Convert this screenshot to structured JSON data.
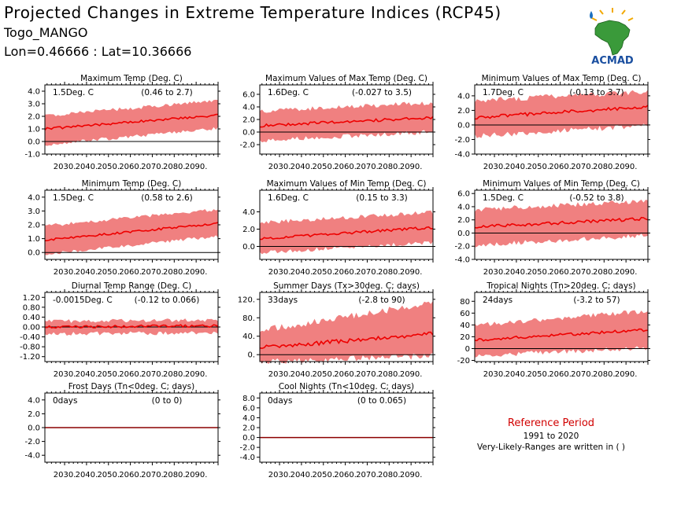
{
  "header": {
    "title": "Projected Changes in Extreme Temperature Indices (RCP45)",
    "location": "Togo_MANGO",
    "coords": "Lon=0.46666 : Lat=10.36666"
  },
  "logo": {
    "text": "ACMAD",
    "icon": "africa-map-logo"
  },
  "colors": {
    "band": "#f08080",
    "line": "#ee0000",
    "zero": "#000000",
    "frost_zero": "#8b0000",
    "reference": "#d10000"
  },
  "x_ticks": [
    "2030.",
    "2040.",
    "2050.",
    "2060.",
    "2070.",
    "2080.",
    "2090."
  ],
  "reference": {
    "title": "Reference Period",
    "years": "1991 to 2020",
    "note": "Very-Likely-Ranges are written in ( )"
  },
  "chart_data": [
    {
      "type": "area",
      "title": "Maximum Temp (Deg. C)",
      "change": "1.5Deg. C",
      "range": "(0.46 to 2.7)",
      "x_range": [
        2021,
        2100
      ],
      "ylim": [
        -1.0,
        4.5
      ],
      "yticks": [
        "4.0",
        "3.0",
        "2.0",
        "1.0",
        "0.0",
        "-1.0"
      ],
      "ytick_values": [
        4,
        3,
        2,
        1,
        0,
        -1
      ],
      "series": {
        "median_start": 1.0,
        "median_end": 2.1,
        "low_start": -0.1,
        "low_end": 1.2,
        "high_start": 1.9,
        "high_end": 3.1,
        "noise": 0.18
      }
    },
    {
      "type": "area",
      "title": "Maximum Values of Max Temp (Deg. C)",
      "change": "1.6Deg. C",
      "range": "(-0.027 to 3.5)",
      "x_range": [
        2021,
        2100
      ],
      "ylim": [
        -3.5,
        7.5
      ],
      "yticks": [
        "6.0",
        "4.0",
        "2.0",
        "0.0",
        "-2.0"
      ],
      "ytick_values": [
        6,
        4,
        2,
        0,
        -2
      ],
      "series": {
        "median_start": 1.0,
        "median_end": 2.3,
        "low_start": -1.0,
        "low_end": 0.4,
        "high_start": 3.0,
        "high_end": 4.3,
        "noise": 0.45
      }
    },
    {
      "type": "area",
      "title": "Minimum Values of Max Temp (Deg. C)",
      "change": "1.7Deg. C",
      "range": "(-0.13 to 3.7)",
      "x_range": [
        2021,
        2100
      ],
      "ylim": [
        -4.0,
        5.5
      ],
      "yticks": [
        "4.0",
        "2.0",
        "0.0",
        "-2.0",
        "-4.0"
      ],
      "ytick_values": [
        4,
        2,
        0,
        -2,
        -4
      ],
      "series": {
        "median_start": 1.0,
        "median_end": 2.5,
        "low_start": -1.2,
        "low_end": 0.3,
        "high_start": 3.0,
        "high_end": 4.2,
        "noise": 0.45
      }
    },
    {
      "type": "area",
      "title": "Minimum Temp (Deg. C)",
      "change": "1.5Deg. C",
      "range": "(0.58 to 2.6)",
      "x_range": [
        2021,
        2100
      ],
      "ylim": [
        -0.5,
        4.5
      ],
      "yticks": [
        "4.0",
        "3.0",
        "2.0",
        "1.0",
        "0.0"
      ],
      "ytick_values": [
        4,
        3,
        2,
        1,
        0
      ],
      "series": {
        "median_start": 0.9,
        "median_end": 2.1,
        "low_start": 0.0,
        "low_end": 1.3,
        "high_start": 1.8,
        "high_end": 3.0,
        "noise": 0.15
      }
    },
    {
      "type": "area",
      "title": "Maximum Values of Min Temp (Deg. C)",
      "change": "1.6Deg. C",
      "range": "(0.15 to 3.3)",
      "x_range": [
        2021,
        2100
      ],
      "ylim": [
        -1.5,
        6.5
      ],
      "yticks": [
        "4.0",
        "2.0",
        "0.0"
      ],
      "ytick_values": [
        4,
        2,
        0
      ],
      "series": {
        "median_start": 0.9,
        "median_end": 2.2,
        "low_start": -0.5,
        "low_end": 0.7,
        "high_start": 2.5,
        "high_end": 3.7,
        "noise": 0.3
      }
    },
    {
      "type": "area",
      "title": "Minimum Values of Min Temp (Deg. C)",
      "change": "1.5Deg. C",
      "range": "(-0.52 to 3.8)",
      "x_range": [
        2021,
        2100
      ],
      "ylim": [
        -4.0,
        6.5
      ],
      "yticks": [
        "6.0",
        "4.0",
        "2.0",
        "0.0",
        "-2.0",
        "-4.0"
      ],
      "ytick_values": [
        6,
        4,
        2,
        0,
        -2,
        -4
      ],
      "series": {
        "median_start": 0.9,
        "median_end": 2.2,
        "low_start": -1.5,
        "low_end": 0.0,
        "high_start": 3.2,
        "high_end": 4.5,
        "noise": 0.45
      }
    },
    {
      "type": "area",
      "title": "Diurnal Temp Range (Deg. C)",
      "change": "-0.0015Deg. C",
      "range": "(-0.12 to 0.066)",
      "x_range": [
        2021,
        2100
      ],
      "ylim": [
        -1.4,
        1.4
      ],
      "yticks": [
        "1.20",
        "0.80",
        "0.40",
        "0.00",
        "-0.40",
        "-0.80",
        "-1.20"
      ],
      "ytick_values": [
        1.2,
        0.8,
        0.4,
        0,
        -0.4,
        -0.8,
        -1.2
      ],
      "series": {
        "median_start": 0.0,
        "median_end": 0.05,
        "low_start": -0.2,
        "low_end": -0.15,
        "high_start": 0.15,
        "high_end": 0.2,
        "noise": 0.1
      }
    },
    {
      "type": "area",
      "title": "Summer Days (Tx>30deg. C; days)",
      "change": "33days",
      "range": "(-2.8 to 90)",
      "x_range": [
        2021,
        2100
      ],
      "ylim": [
        -15,
        135
      ],
      "yticks": [
        "120.",
        "80.",
        "40.",
        "0."
      ],
      "ytick_values": [
        120,
        80,
        40,
        0
      ],
      "series": {
        "median_start": 15,
        "median_end": 45,
        "low_start": -8,
        "low_end": 5,
        "high_start": 45,
        "high_end": 105,
        "noise": 9
      }
    },
    {
      "type": "area",
      "title": "Tropical Nights (Tn>20deg. C; days)",
      "change": "24days",
      "range": "(-3.2 to 57)",
      "x_range": [
        2021,
        2100
      ],
      "ylim": [
        -22,
        95
      ],
      "yticks": [
        "80",
        "60",
        "40",
        "20",
        "0",
        "-20"
      ],
      "ytick_values": [
        80,
        60,
        40,
        20,
        0,
        -20
      ],
      "series": {
        "median_start": 14,
        "median_end": 32,
        "low_start": -8,
        "low_end": 5,
        "high_start": 35,
        "high_end": 60,
        "noise": 5
      }
    },
    {
      "type": "area",
      "title": "Frost Days (Tn<0deg. C; days)",
      "change": "0days",
      "range": "(0 to 0)",
      "x_range": [
        2021,
        2100
      ],
      "ylim": [
        -5.0,
        5.0
      ],
      "yticks": [
        "4.0",
        "2.0",
        "0.0",
        "-2.0",
        "-4.0"
      ],
      "ytick_values": [
        4,
        2,
        0,
        -2,
        -4
      ],
      "series": {
        "median_start": 0,
        "median_end": 0,
        "low_start": 0,
        "low_end": 0,
        "high_start": 0,
        "high_end": 0,
        "noise": 0
      }
    },
    {
      "type": "area",
      "title": "Cool Nights (Tn<10deg. C; days)",
      "change": "0days",
      "range": "(0 to 0.065)",
      "x_range": [
        2021,
        2100
      ],
      "ylim": [
        -5.0,
        9.0
      ],
      "yticks": [
        "8.0",
        "6.0",
        "4.0",
        "2.0",
        "0.0",
        "-2.0",
        "-4.0"
      ],
      "ytick_values": [
        8,
        6,
        4,
        2,
        0,
        -2,
        -4
      ],
      "series": {
        "median_start": 0,
        "median_end": 0,
        "low_start": 0,
        "low_end": 0,
        "high_start": 0,
        "high_end": 0,
        "noise": 0
      }
    }
  ]
}
